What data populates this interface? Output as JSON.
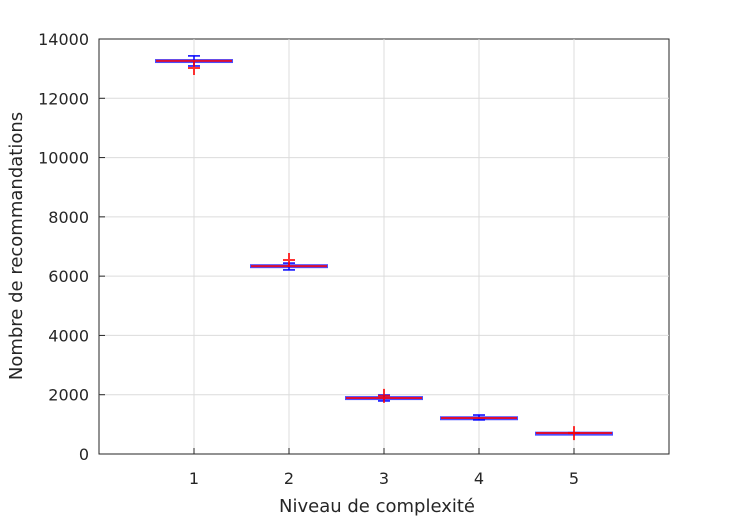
{
  "chart_data": {
    "type": "box",
    "title": "",
    "xlabel": "Niveau de complexité",
    "ylabel": "Nombre de recommandations",
    "xlim": [
      0,
      6
    ],
    "ylim": [
      0,
      14000
    ],
    "grid": true,
    "categories": [
      "1",
      "2",
      "3",
      "4",
      "5"
    ],
    "yticks": [
      "0",
      "2000",
      "4000",
      "6000",
      "8000",
      "10000",
      "12000",
      "14000"
    ],
    "boxes": [
      {
        "x": 1,
        "median": 13260,
        "q1": 13230,
        "q3": 13290,
        "whisker_low": 13090,
        "whisker_high": 13430,
        "outliers": [
          13020
        ]
      },
      {
        "x": 2,
        "median": 6340,
        "q1": 6310,
        "q3": 6370,
        "whisker_low": 6210,
        "whisker_high": 6440,
        "outliers": [
          6545
        ]
      },
      {
        "x": 3,
        "median": 1890,
        "q1": 1860,
        "q3": 1920,
        "whisker_low": 1790,
        "whisker_high": 1990,
        "outliers": [
          1960
        ]
      },
      {
        "x": 4,
        "median": 1215,
        "q1": 1190,
        "q3": 1240,
        "whisker_low": 1150,
        "whisker_high": 1315,
        "outliers": []
      },
      {
        "x": 5,
        "median": 710,
        "q1": 700,
        "q3": 720,
        "whisker_low": 700,
        "whisker_high": 720,
        "outliers": [
          705
        ]
      }
    ],
    "colors": {
      "box": "#0000ff",
      "median": "#ff0000",
      "outlier": "#ff0000",
      "whisker": "#0000ff"
    }
  }
}
